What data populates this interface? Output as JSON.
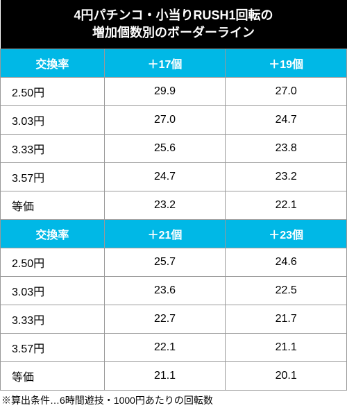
{
  "title_line1": "4円パチンコ・小当りRUSH1回転の",
  "title_line2": "増加個数別のボーダーライン",
  "colors": {
    "title_bg": "#000000",
    "title_fg": "#ffffff",
    "header_bg": "#00b8e6",
    "header_fg": "#ffffff",
    "cell_bg": "#ffffff",
    "cell_fg": "#000000",
    "border": "#999999"
  },
  "section1": {
    "headers": [
      "交換率",
      "＋17個",
      "＋19個"
    ],
    "rows": [
      [
        "2.50円",
        "29.9",
        "27.0"
      ],
      [
        "3.03円",
        "27.0",
        "24.7"
      ],
      [
        "3.33円",
        "25.6",
        "23.8"
      ],
      [
        "3.57円",
        "24.7",
        "23.2"
      ],
      [
        "等価",
        "23.2",
        "22.1"
      ]
    ]
  },
  "section2": {
    "headers": [
      "交換率",
      "＋21個",
      "＋23個"
    ],
    "rows": [
      [
        "2.50円",
        "25.7",
        "24.6"
      ],
      [
        "3.03円",
        "23.6",
        "22.5"
      ],
      [
        "3.33円",
        "22.7",
        "21.7"
      ],
      [
        "3.57円",
        "22.1",
        "21.1"
      ],
      [
        "等価",
        "21.1",
        "20.1"
      ]
    ]
  },
  "footnote": "※算出条件…6時間遊技・1000円あたりの回転数"
}
